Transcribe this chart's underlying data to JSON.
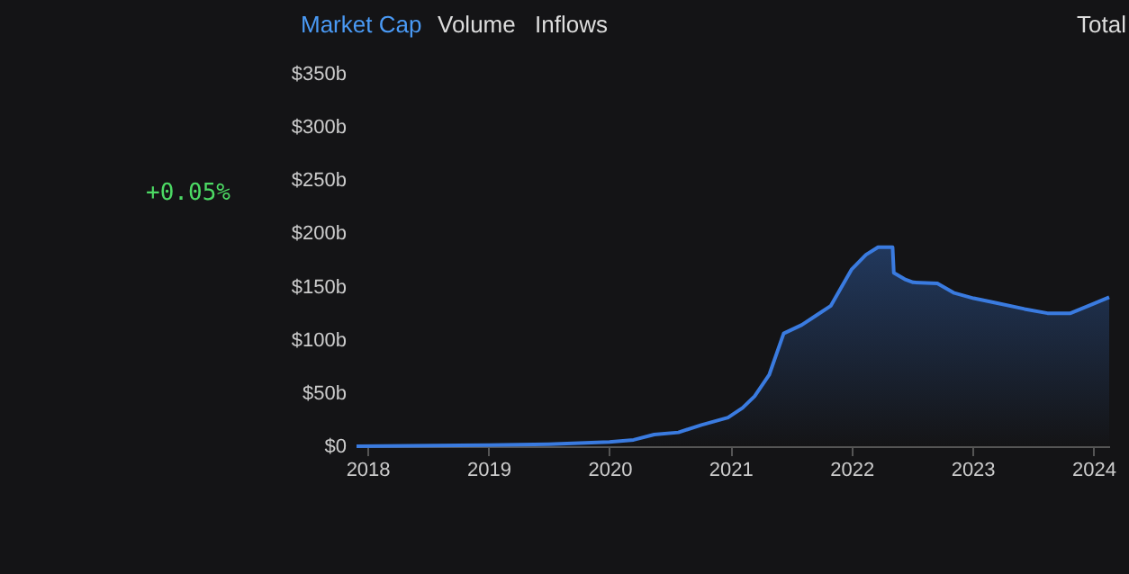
{
  "chart_data": {
    "type": "area",
    "x": [
      2017.91,
      2019.0,
      2019.5,
      2020.0,
      2020.2,
      2020.37,
      2020.57,
      2020.76,
      2020.98,
      2021.1,
      2021.2,
      2021.32,
      2021.44,
      2021.59,
      2021.71,
      2021.83,
      2021.9,
      2022.0,
      2022.12,
      2022.22,
      2022.34,
      2022.35,
      2022.44,
      2022.51,
      2022.71,
      2022.85,
      2023.01,
      2023.18,
      2023.43,
      2023.62,
      2023.81,
      2023.96,
      2024.13
    ],
    "series": [
      {
        "color": "#3a7be0",
        "values": [
          0,
          1,
          2,
          4,
          6,
          11,
          13,
          20,
          27,
          36,
          47,
          67,
          106,
          114,
          123,
          132,
          146,
          166,
          180,
          187,
          187,
          163,
          157,
          154,
          153,
          144,
          139,
          135,
          129,
          125,
          125,
          132,
          140
        ]
      }
    ],
    "xlim": [
      2017.91,
      2024.13
    ],
    "xticks": [
      2018,
      2019,
      2020,
      2021,
      2022,
      2023,
      2024
    ],
    "ylim": [
      0,
      350
    ],
    "yticks": [
      {
        "value": 0,
        "label": "$0"
      },
      {
        "value": 50,
        "label": "$50b"
      },
      {
        "value": 100,
        "label": "$100b"
      },
      {
        "value": 150,
        "label": "$150b"
      },
      {
        "value": 200,
        "label": "$200b"
      },
      {
        "value": 250,
        "label": "$250b"
      },
      {
        "value": 300,
        "label": "$300b"
      },
      {
        "value": 350,
        "label": "$350b"
      }
    ],
    "annotations": [
      "Market Cap",
      "Volume",
      "Inflows",
      "Total",
      "+0.05%"
    ]
  }
}
